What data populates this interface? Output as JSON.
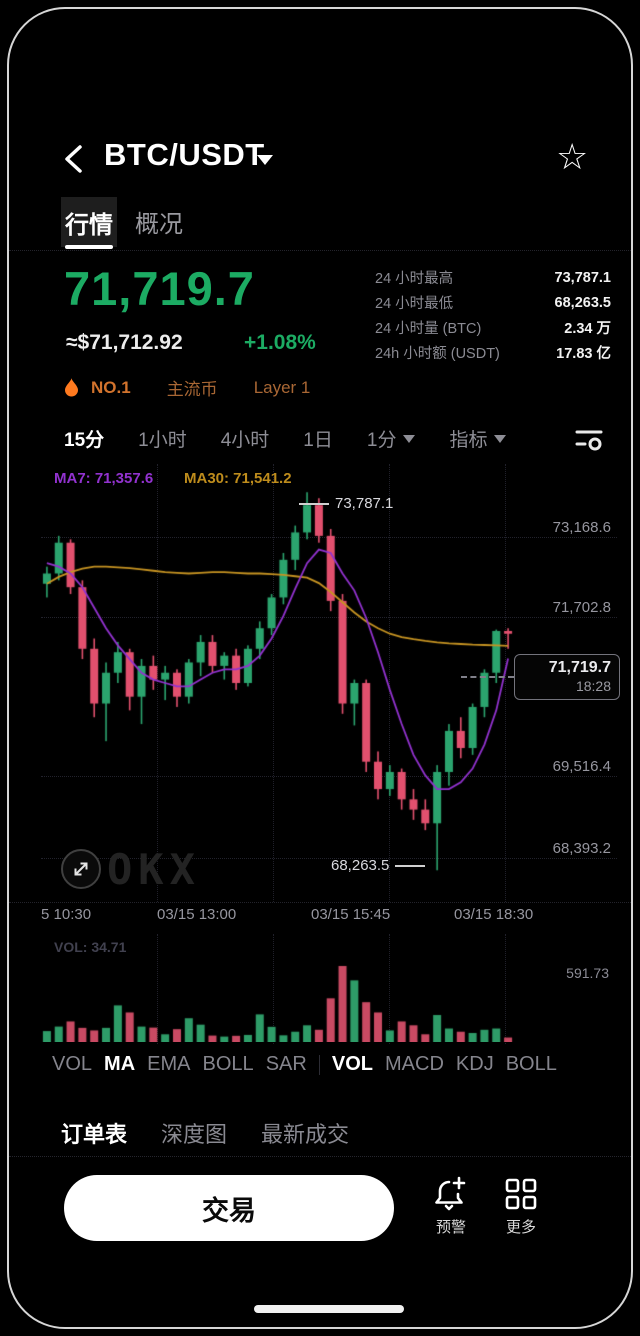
{
  "header": {
    "title": "BTC/USDT",
    "star_icon": "☆"
  },
  "tabs": {
    "market": "行情",
    "overview": "概况"
  },
  "price": {
    "last": "71,719.7",
    "fiat": "≈$71,712.92",
    "change": "+1.08%"
  },
  "stats": [
    {
      "label": "24 小时最高",
      "value": "73,787.1"
    },
    {
      "label": "24 小时最低",
      "value": "68,263.5"
    },
    {
      "label": "24 小时量 (BTC)",
      "value": "2.34 万"
    },
    {
      "label": "24h 小时额 (USDT)",
      "value": "17.83 亿"
    }
  ],
  "badges": {
    "rank": "NO.1",
    "tag1": "主流币",
    "tag2": "Layer 1"
  },
  "toolbar": {
    "timeframes": [
      "15分",
      "1小时",
      "4小时",
      "1日"
    ],
    "timeframe_dropdown": "1分",
    "indicator_label": "指标"
  },
  "chart": {
    "ma7_label": "MA7: 71,357.6",
    "ma30_label": "MA30: 71,541.2",
    "high_annotation": "73,787.1",
    "low_annotation": "68,263.5",
    "price_tag": {
      "price": "71,719.7",
      "time": "18:28"
    },
    "y_labels": [
      "73,168.6",
      "71,702.8",
      "69,516.4",
      "68,393.2"
    ],
    "x_labels": [
      "5 10:30",
      "03/15 13:00",
      "03/15 15:45",
      "03/15 18:30"
    ],
    "watermark": "OKX",
    "vol_label": "VOL: 34.71",
    "vol_axis": "591.73"
  },
  "chart_data": {
    "type": "candlestick",
    "interval": "15m",
    "last_price": 71719.7,
    "high_24h": 73787.1,
    "low_24h": 68263.5,
    "countdown": "18:28",
    "price_range": [
      67800,
      74200
    ],
    "y_axis_values": [
      73168.6,
      71702.8,
      69516.4,
      68393.2
    ],
    "x_axis_labels": [
      "5 10:30",
      "03/15 13:00",
      "03/15 15:45",
      "03/15 18:30"
    ],
    "ma7_last": 71357.6,
    "ma30_last": 71541.2,
    "volume_max": 591.73,
    "volume_last": 34.71,
    "candles_ohlc": [
      [
        72450,
        72700,
        72250,
        72600
      ],
      [
        72600,
        73150,
        72500,
        73050
      ],
      [
        73050,
        73100,
        72300,
        72400
      ],
      [
        72400,
        72500,
        71350,
        71500
      ],
      [
        71500,
        71650,
        70500,
        70700
      ],
      [
        70700,
        71300,
        70150,
        71150
      ],
      [
        71150,
        71600,
        71000,
        71450
      ],
      [
        71450,
        71500,
        70600,
        70800
      ],
      [
        70800,
        71350,
        70400,
        71250
      ],
      [
        71250,
        71400,
        70900,
        71050
      ],
      [
        71050,
        71250,
        70750,
        71150
      ],
      [
        71150,
        71200,
        70650,
        70800
      ],
      [
        70800,
        71350,
        70700,
        71300
      ],
      [
        71300,
        71700,
        71100,
        71600
      ],
      [
        71600,
        71700,
        71150,
        71250
      ],
      [
        71250,
        71450,
        71050,
        71400
      ],
      [
        71400,
        71500,
        70900,
        71000
      ],
      [
        71000,
        71550,
        70950,
        71500
      ],
      [
        71500,
        71900,
        71350,
        71800
      ],
      [
        71800,
        72300,
        71700,
        72250
      ],
      [
        72250,
        72900,
        72150,
        72800
      ],
      [
        72800,
        73300,
        72650,
        73200
      ],
      [
        73200,
        73787.1,
        73100,
        73600
      ],
      [
        73600,
        73700,
        73050,
        73150
      ],
      [
        73150,
        73250,
        72050,
        72200
      ],
      [
        72200,
        72300,
        70550,
        70700
      ],
      [
        70700,
        71050,
        70380,
        71000
      ],
      [
        71000,
        71050,
        69700,
        69850
      ],
      [
        69850,
        70000,
        69300,
        69450
      ],
      [
        69450,
        69800,
        69350,
        69700
      ],
      [
        69700,
        69750,
        69150,
        69300
      ],
      [
        69300,
        69450,
        69000,
        69150
      ],
      [
        69150,
        69300,
        68850,
        68950
      ],
      [
        68950,
        69800,
        68263.5,
        69700
      ],
      [
        69700,
        70400,
        69500,
        70300
      ],
      [
        70300,
        70500,
        69900,
        70050
      ],
      [
        70050,
        70700,
        69950,
        70650
      ],
      [
        70650,
        71200,
        70500,
        71150
      ],
      [
        71150,
        71780,
        71000,
        71760
      ],
      [
        71760,
        71800,
        71500,
        71719.7
      ]
    ],
    "ma7": [
      72750,
      72700,
      72600,
      72400,
      72100,
      71800,
      71550,
      71350,
      71150,
      71050,
      71000,
      70950,
      70950,
      71050,
      71150,
      71200,
      71200,
      71250,
      71400,
      71650,
      71980,
      72380,
      72750,
      72950,
      72900,
      72600,
      72350,
      71950,
      71450,
      70900,
      70400,
      69950,
      69650,
      69450,
      69450,
      69550,
      69750,
      70100,
      70600,
      71357.6
    ],
    "ma30": [
      72450,
      72550,
      72620,
      72670,
      72700,
      72700,
      72690,
      72680,
      72660,
      72640,
      72620,
      72610,
      72600,
      72610,
      72620,
      72620,
      72610,
      72600,
      72600,
      72590,
      72580,
      72560,
      72540,
      72460,
      72330,
      72180,
      72030,
      71900,
      71800,
      71720,
      71670,
      71640,
      71615,
      71595,
      71580,
      71570,
      71560,
      71555,
      71550,
      71541.2
    ],
    "volumes": [
      85,
      120,
      160,
      110,
      90,
      110,
      285,
      230,
      120,
      112,
      60,
      100,
      185,
      135,
      50,
      42,
      48,
      55,
      215,
      118,
      52,
      80,
      130,
      95,
      340,
      591.73,
      480,
      310,
      230,
      90,
      160,
      130,
      60,
      210,
      105,
      80,
      70,
      95,
      105,
      34.71
    ],
    "colors": {
      "up": "#2ba46e",
      "down": "#e2506e",
      "vol_up": "#2e9c68",
      "vol_down": "#c94a63",
      "ma7": "#9232cf",
      "ma30": "#c79422"
    }
  },
  "indicators": {
    "main": [
      "VOL",
      "MA",
      "EMA",
      "BOLL",
      "SAR"
    ],
    "sub": [
      "VOL",
      "MACD",
      "KDJ",
      "BOLL"
    ]
  },
  "order_tabs": [
    "订单表",
    "深度图",
    "最新成交"
  ],
  "bottom": {
    "trade": "交易",
    "alert": "预警",
    "more": "更多"
  }
}
